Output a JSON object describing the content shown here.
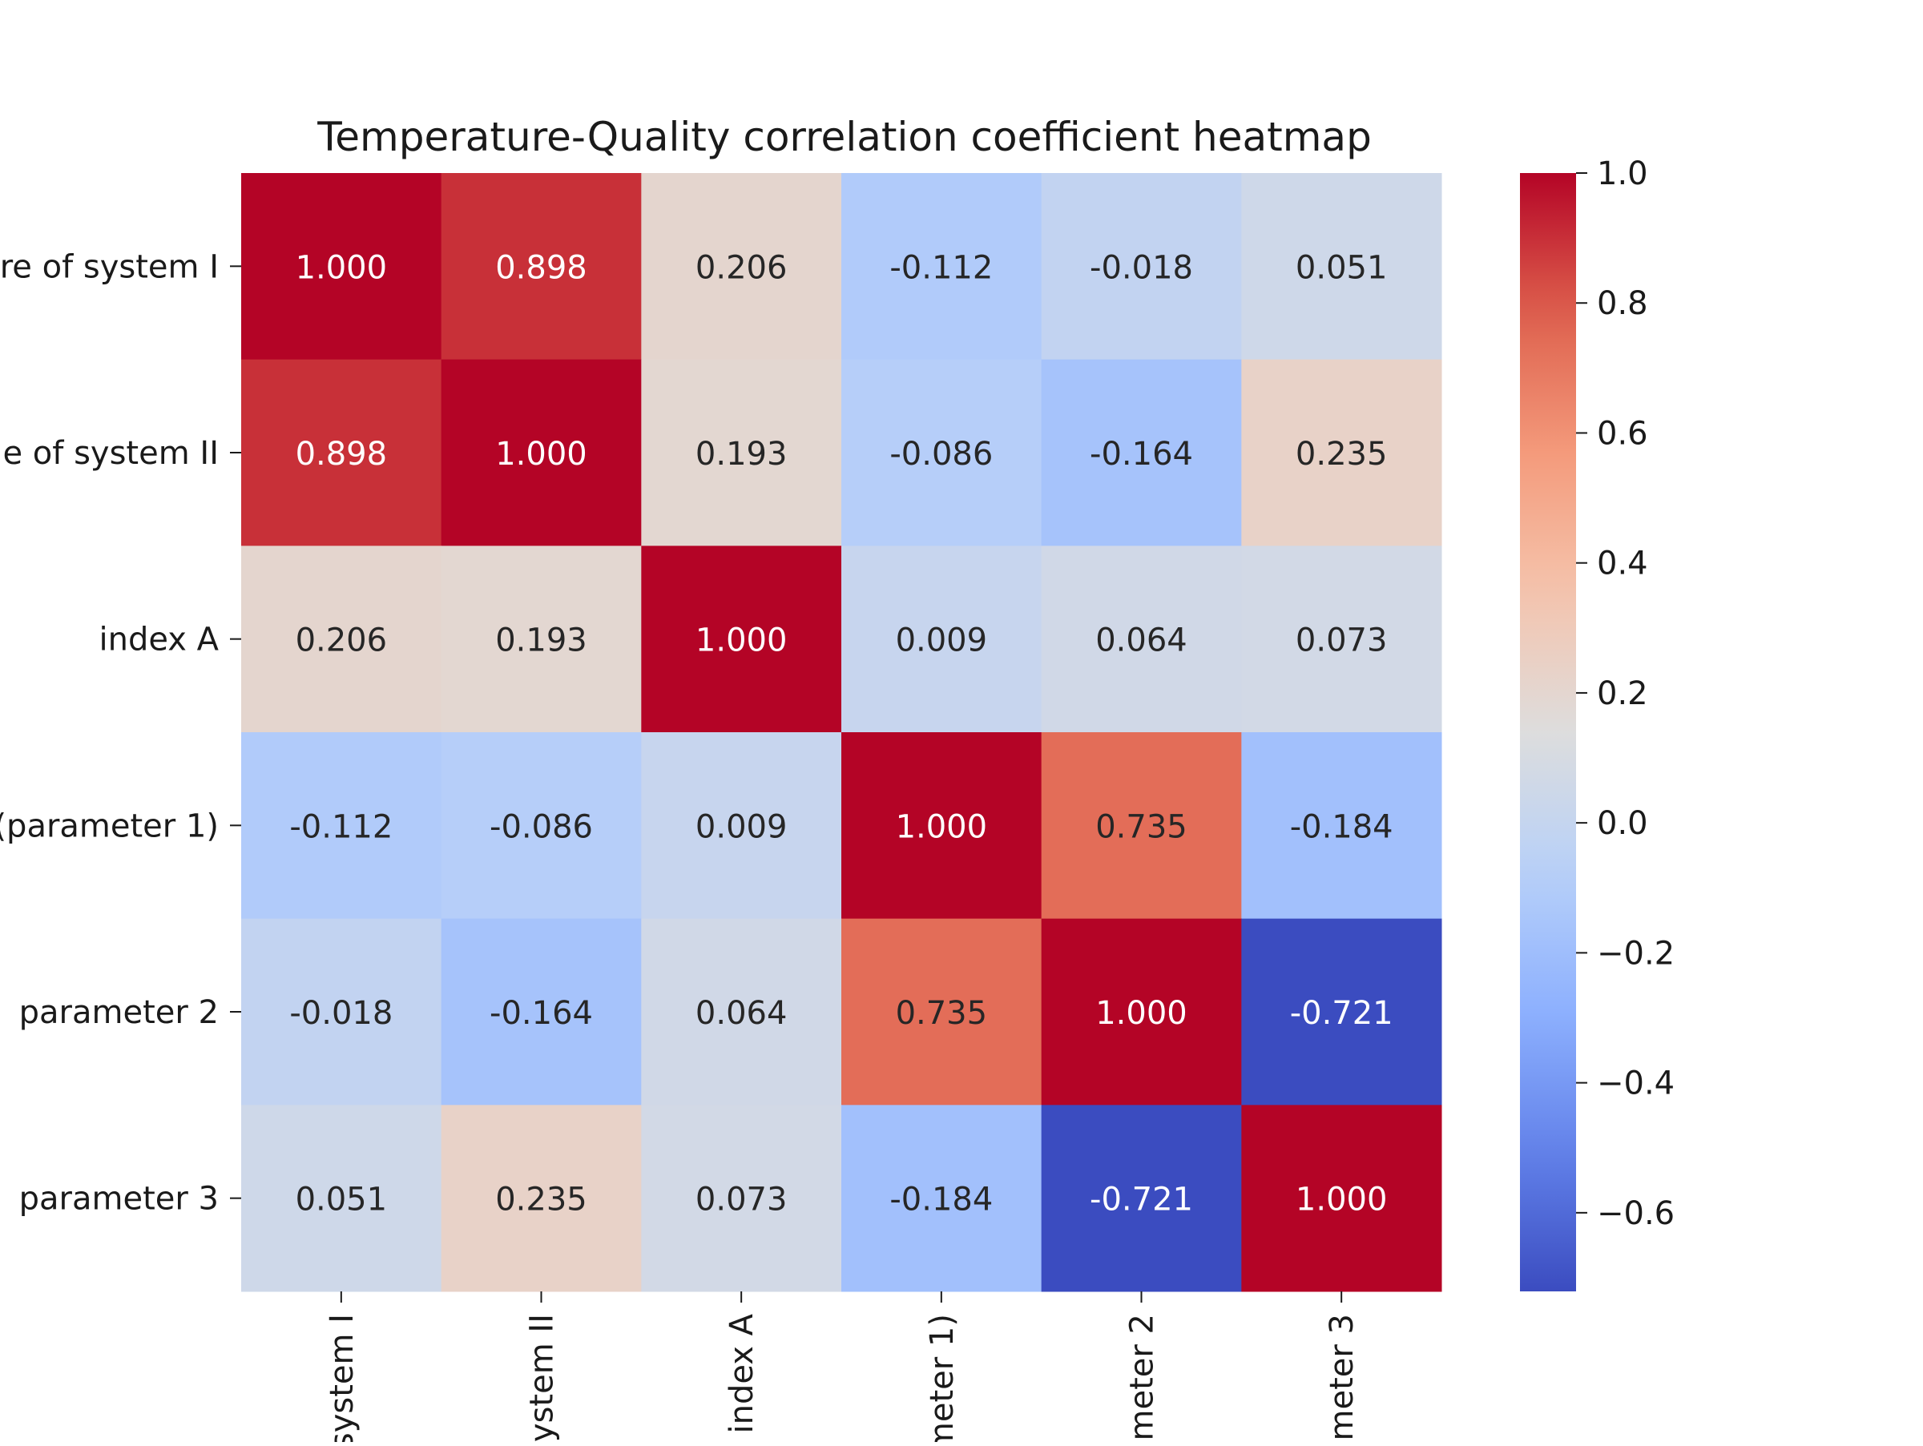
{
  "chart_data": {
    "type": "heatmap",
    "title": "Temperature-Quality correlation coefficient heatmap",
    "row_tick_labels": [
      "re of system I",
      "e of system II",
      "index A",
      "(parameter 1)",
      "parameter 2",
      "parameter 3"
    ],
    "col_tick_labels": [
      "system I",
      "ystem II",
      "index A",
      "meter 1)",
      "meter 2",
      "meter 3"
    ],
    "values": [
      [
        1.0,
        0.898,
        0.206,
        -0.112,
        -0.018,
        0.051
      ],
      [
        0.898,
        1.0,
        0.193,
        -0.086,
        -0.164,
        0.235
      ],
      [
        0.206,
        0.193,
        1.0,
        0.009,
        0.064,
        0.073
      ],
      [
        -0.112,
        -0.086,
        0.009,
        1.0,
        0.735,
        -0.184
      ],
      [
        -0.018,
        -0.164,
        0.064,
        0.735,
        1.0,
        -0.721
      ],
      [
        0.051,
        0.235,
        0.073,
        -0.184,
        -0.721,
        1.0
      ]
    ],
    "value_format": "0.000",
    "colormap": "coolwarm",
    "vmin": -0.721,
    "vmax": 1.0,
    "colorbar_ticks": [
      1.0,
      0.8,
      0.6,
      0.4,
      0.2,
      0.0,
      -0.2,
      -0.4,
      -0.6
    ],
    "colorbar_tick_labels": [
      "1.0",
      "0.8",
      "0.6",
      "0.4",
      "0.2",
      "0.0",
      "−0.2",
      "−0.4",
      "−0.6"
    ],
    "grid": false,
    "legend": "colorbar-right"
  }
}
